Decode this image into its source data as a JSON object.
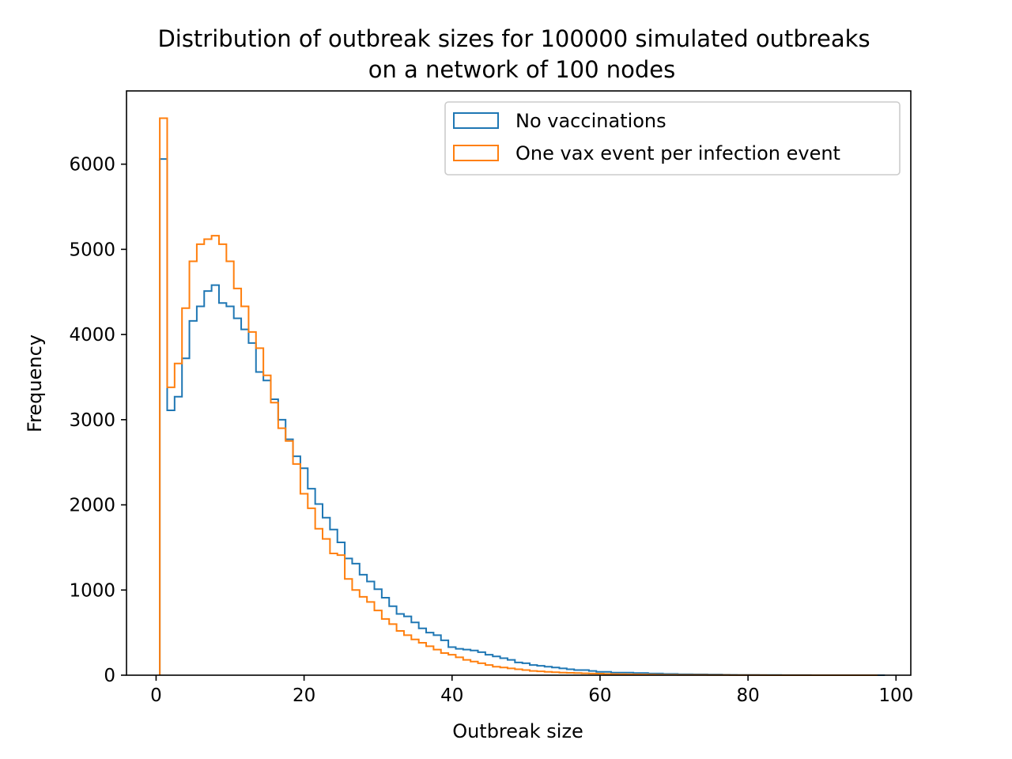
{
  "chart_data": {
    "type": "histogram-step",
    "title": "Distribution of outbreak sizes for 100000 simulated outbreaks",
    "subtitle": "on a network of 100 nodes",
    "xlabel": "Outbreak size",
    "ylabel": "Frequency",
    "xlim": [
      -4,
      102
    ],
    "ylim": [
      0,
      6860
    ],
    "xticks": [
      0,
      20,
      40,
      60,
      80,
      100
    ],
    "yticks": [
      0,
      1000,
      2000,
      3000,
      4000,
      5000,
      6000
    ],
    "legend_position": "top-right",
    "bin_edges_start": 0.5,
    "bin_width": 1,
    "series": [
      {
        "name": "No vaccinations",
        "color": "#1f77b4",
        "values": [
          6060,
          3110,
          3270,
          3720,
          4160,
          4330,
          4510,
          4580,
          4370,
          4330,
          4190,
          4060,
          3900,
          3560,
          3460,
          3240,
          3000,
          2770,
          2570,
          2430,
          2190,
          2010,
          1850,
          1710,
          1560,
          1370,
          1310,
          1180,
          1100,
          1010,
          910,
          810,
          720,
          690,
          620,
          550,
          500,
          470,
          410,
          330,
          310,
          300,
          290,
          270,
          240,
          220,
          200,
          180,
          150,
          140,
          120,
          110,
          100,
          90,
          80,
          70,
          60,
          60,
          50,
          40,
          40,
          30,
          30,
          30,
          25,
          25,
          20,
          20,
          15,
          15,
          12,
          12,
          10,
          10,
          8,
          8,
          6,
          5,
          4,
          3,
          3,
          2,
          2,
          2,
          1,
          1,
          1,
          1,
          0,
          0,
          0,
          0,
          0,
          0,
          0,
          0,
          0,
          0
        ]
      },
      {
        "name": "One vax event per infection event",
        "color": "#ff7f0e",
        "values": [
          6540,
          3380,
          3660,
          4310,
          4860,
          5060,
          5120,
          5160,
          5060,
          4860,
          4540,
          4330,
          4030,
          3840,
          3520,
          3200,
          2900,
          2750,
          2480,
          2130,
          1960,
          1720,
          1600,
          1430,
          1410,
          1130,
          1000,
          920,
          860,
          760,
          660,
          600,
          520,
          470,
          420,
          380,
          340,
          300,
          260,
          240,
          210,
          180,
          160,
          140,
          120,
          100,
          90,
          80,
          70,
          60,
          50,
          45,
          40,
          35,
          30,
          28,
          25,
          22,
          20,
          18,
          15,
          13,
          12,
          10,
          9,
          8,
          7,
          6,
          5,
          5,
          4,
          4,
          3,
          3,
          2,
          2,
          2,
          1,
          1,
          1,
          1,
          1,
          0,
          0,
          0,
          0,
          0,
          0,
          0,
          0,
          0,
          0,
          0,
          0,
          0,
          0,
          0
        ]
      }
    ]
  }
}
